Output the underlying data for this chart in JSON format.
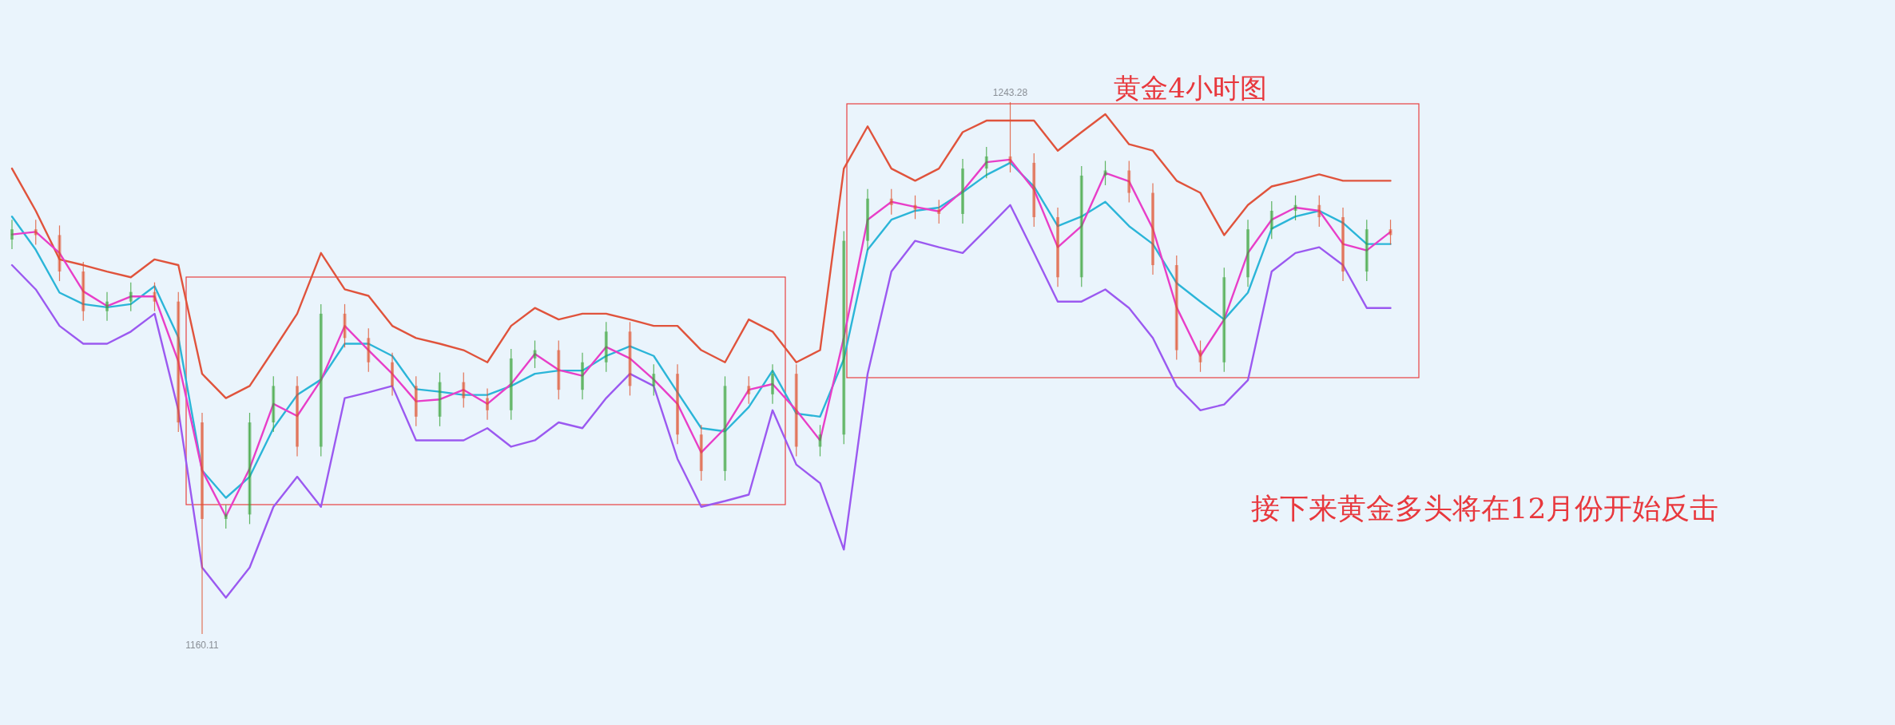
{
  "chart_data": {
    "type": "candlestick",
    "title": "黄金4小时图",
    "categories": [
      null,
      null,
      null,
      null,
      null,
      null,
      null,
      null,
      null,
      null,
      null,
      null,
      null,
      null,
      null,
      null,
      null,
      null,
      null,
      null,
      null,
      null,
      null,
      null,
      null,
      null,
      null,
      null,
      null,
      null,
      null,
      null,
      null,
      null,
      null,
      null,
      null,
      null,
      null,
      null,
      null,
      null,
      null,
      null,
      null,
      null,
      null,
      null,
      null,
      null,
      null,
      null,
      null,
      null,
      null,
      null,
      null,
      null,
      null
    ],
    "ohlc": [
      [
        1221.8,
        1224.9,
        1220.3,
        1223.4
      ],
      [
        1223.4,
        1224.9,
        1221.0,
        1222.5
      ],
      [
        1222.5,
        1224.0,
        1215.3,
        1216.8
      ],
      [
        1216.8,
        1218.3,
        1209.1,
        1210.6
      ],
      [
        1210.6,
        1213.6,
        1209.1,
        1212.1
      ],
      [
        1212.1,
        1215.1,
        1210.6,
        1213.6
      ],
      [
        1213.6,
        1215.1,
        1210.6,
        1212.1
      ],
      [
        1212.1,
        1213.6,
        1191.7,
        1193.2
      ],
      [
        1193.2,
        1194.7,
        1160.11,
        1178.1
      ],
      [
        1178.1,
        1180.3,
        1176.6,
        1178.8
      ],
      [
        1178.8,
        1194.7,
        1177.3,
        1193.2
      ],
      [
        1193.2,
        1200.4,
        1191.7,
        1198.9
      ],
      [
        1198.9,
        1200.4,
        1187.9,
        1189.4
      ],
      [
        1189.4,
        1211.7,
        1187.9,
        1210.2
      ],
      [
        1210.2,
        1211.7,
        1204.9,
        1206.4
      ],
      [
        1206.4,
        1207.9,
        1201.1,
        1202.6
      ],
      [
        1202.6,
        1204.1,
        1197.4,
        1198.9
      ],
      [
        1198.9,
        1200.4,
        1192.6,
        1194.1
      ],
      [
        1194.1,
        1201.0,
        1192.6,
        1199.5
      ],
      [
        1199.5,
        1201.0,
        1195.5,
        1197.0
      ],
      [
        1197.0,
        1198.5,
        1193.6,
        1195.1
      ],
      [
        1195.1,
        1204.7,
        1193.6,
        1203.2
      ],
      [
        1203.2,
        1206.0,
        1201.7,
        1204.5
      ],
      [
        1204.5,
        1206.0,
        1196.8,
        1198.3
      ],
      [
        1198.3,
        1204.1,
        1196.8,
        1202.6
      ],
      [
        1202.6,
        1208.9,
        1201.1,
        1207.4
      ],
      [
        1207.4,
        1208.9,
        1197.4,
        1198.9
      ],
      [
        1198.9,
        1202.3,
        1197.4,
        1200.8
      ],
      [
        1200.8,
        1202.3,
        1189.8,
        1191.3
      ],
      [
        1191.3,
        1192.8,
        1184.1,
        1185.6
      ],
      [
        1185.6,
        1200.4,
        1184.1,
        1198.9
      ],
      [
        1198.9,
        1200.4,
        1196.1,
        1197.6
      ],
      [
        1197.6,
        1202.3,
        1196.1,
        1200.8
      ],
      [
        1200.8,
        1202.3,
        1187.9,
        1189.4
      ],
      [
        1189.4,
        1192.8,
        1187.9,
        1191.3
      ],
      [
        1191.3,
        1223.1,
        1189.8,
        1221.6
      ],
      [
        1221.6,
        1229.7,
        1220.1,
        1228.2
      ],
      [
        1228.2,
        1229.7,
        1225.7,
        1227.2
      ],
      [
        1227.2,
        1228.7,
        1225.0,
        1226.5
      ],
      [
        1226.5,
        1228.0,
        1224.3,
        1225.8
      ],
      [
        1225.8,
        1234.4,
        1224.3,
        1232.9
      ],
      [
        1232.9,
        1236.3,
        1231.4,
        1234.8
      ],
      [
        1234.8,
        1243.28,
        1232.3,
        1233.8
      ],
      [
        1233.8,
        1235.3,
        1223.8,
        1225.3
      ],
      [
        1225.3,
        1226.8,
        1214.4,
        1215.9
      ],
      [
        1215.9,
        1233.3,
        1214.4,
        1231.8
      ],
      [
        1231.8,
        1234.1,
        1230.3,
        1232.6
      ],
      [
        1232.6,
        1234.1,
        1227.6,
        1229.1
      ],
      [
        1229.1,
        1230.6,
        1216.3,
        1217.8
      ],
      [
        1217.8,
        1219.3,
        1203.0,
        1204.5
      ],
      [
        1204.5,
        1206.0,
        1201.1,
        1202.6
      ],
      [
        1202.6,
        1217.4,
        1201.1,
        1215.9
      ],
      [
        1215.9,
        1224.9,
        1214.4,
        1223.4
      ],
      [
        1223.4,
        1227.8,
        1221.9,
        1226.3
      ],
      [
        1226.3,
        1228.7,
        1224.8,
        1227.2
      ],
      [
        1227.2,
        1228.7,
        1223.8,
        1225.3
      ],
      [
        1225.3,
        1226.8,
        1215.3,
        1216.8
      ],
      [
        1216.8,
        1224.9,
        1215.3,
        1223.4
      ],
      [
        1223.4,
        1224.9,
        1221.0,
        1222.5
      ]
    ],
    "colors": [
      "#3aa43a",
      "#e0522e",
      "#e0522e",
      "#e0522e",
      "#3aa43a",
      "#3aa43a",
      "#e0522e",
      "#e0522e",
      "#e0522e",
      "#3aa43a",
      "#3aa43a",
      "#3aa43a",
      "#e0522e",
      "#3aa43a",
      "#e0522e",
      "#e0522e",
      "#e0522e",
      "#e0522e",
      "#3aa43a",
      "#e0522e",
      "#e0522e",
      "#3aa43a",
      "#3aa43a",
      "#e0522e",
      "#3aa43a",
      "#3aa43a",
      "#e0522e",
      "#3aa43a",
      "#e0522e",
      "#e0522e",
      "#3aa43a",
      "#e0522e",
      "#3aa43a",
      "#e0522e",
      "#3aa43a",
      "#3aa43a",
      "#3aa43a",
      "#e0522e",
      "#e0522e",
      "#e0522e",
      "#3aa43a",
      "#3aa43a",
      "#e0522e",
      "#e0522e",
      "#e0522e",
      "#3aa43a",
      "#3aa43a",
      "#e0522e",
      "#e0522e",
      "#e0522e",
      "#e0522e",
      "#3aa43a",
      "#3aa43a",
      "#3aa43a",
      "#3aa43a",
      "#e0522e",
      "#e0522e",
      "#3aa43a",
      "#e0522e"
    ],
    "series": [
      {
        "type": "line",
        "color": "#e0533c",
        "values": [
          1232.9,
          1226.3,
          1218.7,
          1217.8,
          1216.8,
          1215.9,
          1218.7,
          1217.8,
          1200.8,
          1197.0,
          1198.9,
          1204.5,
          1210.2,
          1219.7,
          1214.0,
          1213.0,
          1208.3,
          1206.4,
          1205.5,
          1204.5,
          1202.6,
          1208.3,
          1211.1,
          1209.3,
          1210.2,
          1210.2,
          1209.3,
          1208.3,
          1208.3,
          1204.5,
          1202.6,
          1209.3,
          1207.4,
          1202.6,
          1204.5,
          1232.9,
          1239.5,
          1232.9,
          1231.0,
          1232.9,
          1238.6,
          1240.4,
          1240.4,
          1240.4,
          1235.7,
          1238.6,
          1241.4,
          1236.7,
          1235.7,
          1231.0,
          1229.1,
          1222.5,
          1227.2,
          1230.1,
          1231.0,
          1232.0,
          1231.0,
          1231.0,
          1231.0
        ]
      },
      {
        "type": "line",
        "color": "#9b59f0",
        "values": [
          1217.8,
          1214.0,
          1208.3,
          1205.5,
          1205.5,
          1207.4,
          1210.2,
          1195.1,
          1170.5,
          1165.8,
          1170.5,
          1180.0,
          1184.7,
          1180.0,
          1197.0,
          1197.9,
          1198.9,
          1190.4,
          1190.4,
          1190.4,
          1192.3,
          1189.4,
          1190.4,
          1193.2,
          1192.3,
          1197.0,
          1200.8,
          1198.9,
          1187.5,
          1180.0,
          1180.9,
          1181.9,
          1195.1,
          1186.6,
          1183.7,
          1173.3,
          1200.8,
          1216.8,
          1221.6,
          1220.6,
          1219.7,
          1223.4,
          1227.2,
          1219.7,
          1212.1,
          1212.1,
          1214.0,
          1211.1,
          1206.4,
          1198.9,
          1195.1,
          1196.0,
          1199.8,
          1216.8,
          1219.7,
          1220.6,
          1217.8,
          1211.1,
          1211.1
        ]
      },
      {
        "type": "line",
        "color": "#2bb5d8",
        "values": [
          1225.4,
          1220.2,
          1213.5,
          1211.7,
          1211.2,
          1211.7,
          1214.5,
          1206.5,
          1185.7,
          1181.4,
          1184.7,
          1192.3,
          1197.5,
          1199.9,
          1205.5,
          1205.5,
          1203.6,
          1198.4,
          1198.0,
          1197.5,
          1197.5,
          1198.9,
          1200.8,
          1201.3,
          1201.3,
          1203.6,
          1205.1,
          1203.6,
          1197.9,
          1192.3,
          1191.8,
          1195.6,
          1201.3,
          1194.6,
          1194.1,
          1203.1,
          1220.2,
          1224.9,
          1226.3,
          1226.8,
          1229.2,
          1231.9,
          1233.8,
          1230.1,
          1223.9,
          1225.4,
          1227.7,
          1223.9,
          1221.1,
          1215.0,
          1212.1,
          1209.3,
          1213.5,
          1223.5,
          1225.4,
          1226.3,
          1224.4,
          1221.1,
          1221.1
        ]
      },
      {
        "type": "line",
        "color": "#e83ec8",
        "values": [
          1222.6,
          1223.0,
          1219.7,
          1213.7,
          1211.4,
          1212.9,
          1212.9,
          1202.7,
          1185.7,
          1178.5,
          1186.0,
          1196.1,
          1194.2,
          1199.8,
          1208.3,
          1204.5,
          1200.8,
          1196.5,
          1196.8,
          1198.3,
          1196.1,
          1199.2,
          1203.9,
          1201.4,
          1200.5,
          1205.0,
          1203.2,
          1199.9,
          1196.1,
          1188.5,
          1192.3,
          1198.3,
          1199.2,
          1195.1,
          1190.4,
          1206.5,
          1224.9,
          1227.7,
          1226.9,
          1226.2,
          1229.4,
          1233.9,
          1234.3,
          1229.6,
          1220.6,
          1223.9,
          1232.2,
          1230.9,
          1223.5,
          1211.2,
          1203.6,
          1209.3,
          1219.7,
          1224.9,
          1226.8,
          1226.3,
          1221.1,
          1220.1,
          1223.0
        ]
      }
    ],
    "annotations": [
      "接下来黄金多头将在12月份开始反击",
      {
        "text": "1243.28",
        "y": 1243.28
      },
      {
        "text": "1160.11",
        "y": 1160.11
      }
    ]
  }
}
